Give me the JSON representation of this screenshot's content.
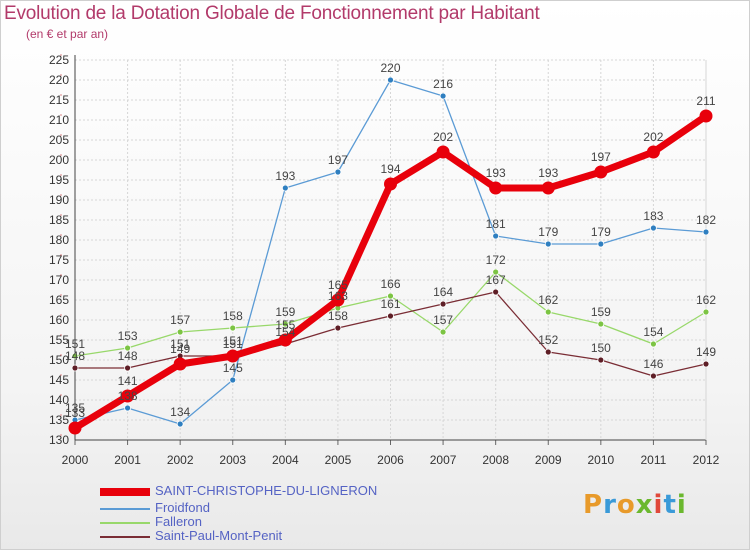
{
  "title": "Evolution de la Dotation Globale de Fonctionnement par Habitant",
  "subtitle": "(en € et par an)",
  "logo": {
    "text": "Proxiti",
    "letters": [
      {
        "ch": "P",
        "color": "#e89a2a"
      },
      {
        "ch": "r",
        "color": "#3a9ad8"
      },
      {
        "ch": "o",
        "color": "#e89a2a"
      },
      {
        "ch": "x",
        "color": "#6bb82e"
      },
      {
        "ch": "i",
        "color": "#e0483a"
      },
      {
        "ch": "t",
        "color": "#3a9ad8"
      },
      {
        "ch": "i",
        "color": "#6bb82e"
      }
    ]
  },
  "chart_data": {
    "type": "line",
    "title": "Evolution de la Dotation Globale de Fonctionnement par Habitant",
    "subtitle": "(en € et par an)",
    "xlabel": "",
    "ylabel": "",
    "x": [
      "2000",
      "2001",
      "2002",
      "2003",
      "2004",
      "2005",
      "2006",
      "2007",
      "2008",
      "2009",
      "2010",
      "2011",
      "2012"
    ],
    "ylim": [
      130,
      225
    ],
    "ytick_step": 5,
    "grid": true,
    "legend_position": "bottom-left",
    "series": [
      {
        "name": "Froidfond",
        "color": "#5b9bd5",
        "marker": "#2f7fc0",
        "width": 1.3,
        "values": [
          135,
          138,
          134,
          145,
          193,
          197,
          220,
          216,
          181,
          179,
          179,
          183,
          182
        ],
        "labels": [
          "135",
          "138",
          "134",
          "145",
          "193",
          "197",
          "220",
          "216",
          "181",
          "179",
          "179",
          "183",
          "182"
        ]
      },
      {
        "name": "Falleron",
        "color": "#98d86a",
        "marker": "#7cc443",
        "width": 1.3,
        "values": [
          151,
          153,
          157,
          158,
          159,
          163,
          166,
          157,
          172,
          162,
          159,
          154,
          162
        ],
        "labels": [
          "151",
          "153",
          "157",
          "158",
          "159",
          "163",
          "166",
          "157",
          "172",
          "162",
          "159",
          "154",
          "162"
        ]
      },
      {
        "name": "Saint-Paul-Mont-Penit",
        "color": "#7a2d35",
        "marker": "#5e1e26",
        "width": 1.3,
        "values": [
          148,
          148,
          151,
          151,
          154,
          158,
          161,
          164,
          167,
          152,
          150,
          146,
          149
        ],
        "labels": [
          "148",
          "148",
          "151",
          "151",
          "154",
          "158",
          "161",
          "164",
          "167",
          "152",
          "150",
          "146",
          "149"
        ]
      },
      {
        "name": "SAINT-CHRISTOPHE-DU-LIGNERON",
        "color": "#e8000b",
        "marker": "#e8000b",
        "width": 7,
        "values": [
          133,
          141,
          149,
          151,
          155,
          165,
          194,
          202,
          193,
          193,
          197,
          202,
          211
        ],
        "labels": [
          "133",
          "141",
          "149",
          "151",
          "155",
          "165",
          "194",
          "202",
          "193",
          "193",
          "197",
          "202",
          "211"
        ]
      }
    ],
    "legend_order": [
      "SAINT-CHRISTOPHE-DU-LIGNERON",
      "Froidfond",
      "Falleron",
      "Saint-Paul-Mont-Penit"
    ]
  }
}
